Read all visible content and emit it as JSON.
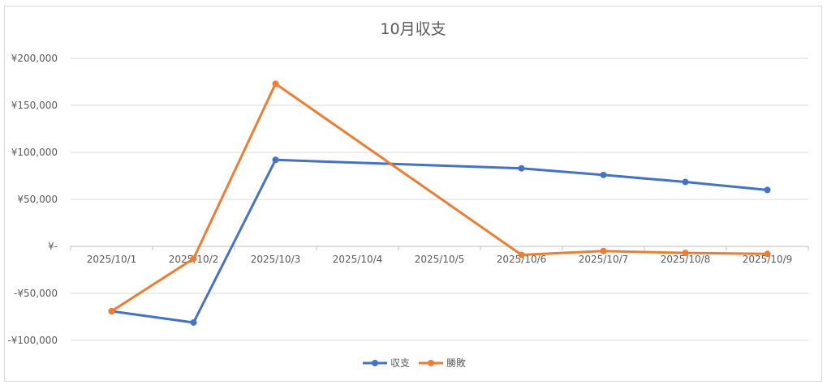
{
  "chart_data": {
    "type": "line",
    "title": "10月収支",
    "categories": [
      "2025/10/1",
      "2025/10/2",
      "2025/10/3",
      "2025/10/4",
      "2025/10/5",
      "2025/10/6",
      "2025/10/7",
      "2025/10/8",
      "2025/10/9"
    ],
    "series": [
      {
        "name": "収支",
        "color": "#4472c4",
        "values": [
          -69000,
          -81000,
          92000,
          null,
          null,
          83000,
          76000,
          68500,
          60000
        ]
      },
      {
        "name": "勝敗",
        "color": "#ed7d31",
        "values": [
          -69000,
          -13000,
          173000,
          null,
          null,
          -9000,
          -5000,
          -7000,
          -8000
        ]
      }
    ],
    "ylim": [
      -100000,
      200000
    ],
    "yticks": [
      {
        "value": 200000,
        "label": "¥200,000"
      },
      {
        "value": 150000,
        "label": "¥150,000"
      },
      {
        "value": 100000,
        "label": "¥100,000"
      },
      {
        "value": 50000,
        "label": "¥50,000"
      },
      {
        "value": 0,
        "label": "¥-"
      },
      {
        "value": -50000,
        "label": "-¥50,000"
      },
      {
        "value": -100000,
        "label": "-¥100,000"
      }
    ],
    "xlabel": "",
    "ylabel": "",
    "grid": true,
    "legend_position": "bottom"
  }
}
